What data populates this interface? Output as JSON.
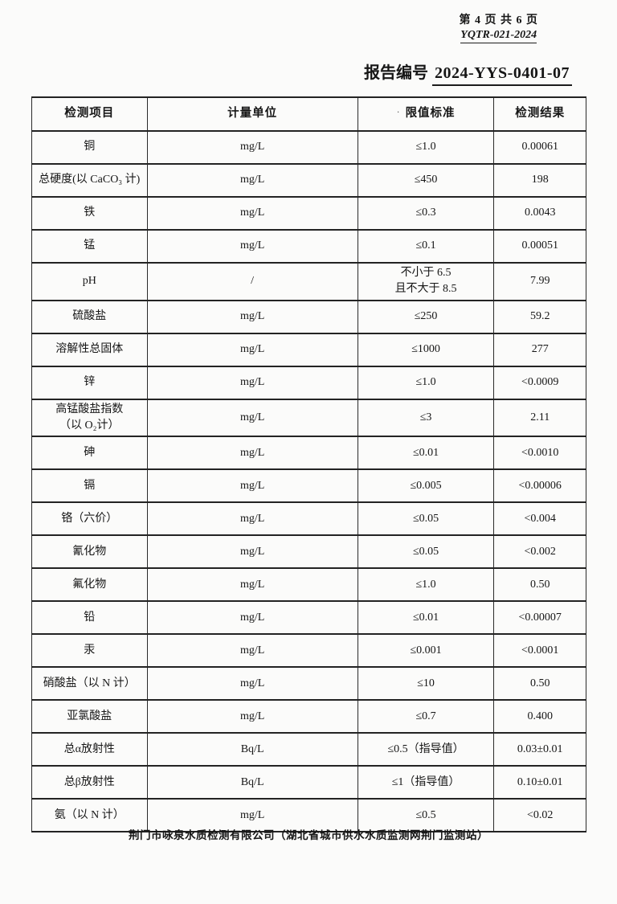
{
  "page_header": {
    "page_info": "第 4 页 共 6 页",
    "doc_code": "YQTR-021-2024",
    "report_label": "报告编号",
    "report_number": "2024-YYS-0401-07"
  },
  "table": {
    "headers": [
      "检测项目",
      "计量单位",
      "限值标准",
      "检测结果"
    ],
    "limit_header_dot": "·",
    "rows": [
      {
        "item": "铜",
        "unit": "mg/L",
        "limit": "≤1.0",
        "result": "0.00061"
      },
      {
        "item": "总硬度(以 CaCO₃ 计)",
        "unit": "mg/L",
        "limit": "≤450",
        "result": "198"
      },
      {
        "item": "铁",
        "unit": "mg/L",
        "limit": "≤0.3",
        "result": "0.0043"
      },
      {
        "item": "锰",
        "unit": "mg/L",
        "limit": "≤0.1",
        "result": "0.00051"
      },
      {
        "item": "pH",
        "unit": "/",
        "limit": "不小于 6.5\n且不大于 8.5",
        "result": "7.99"
      },
      {
        "item": "硫酸盐",
        "unit": "mg/L",
        "limit": "≤250",
        "result": "59.2"
      },
      {
        "item": "溶解性总固体",
        "unit": "mg/L",
        "limit": "≤1000",
        "result": "277"
      },
      {
        "item": "锌",
        "unit": "mg/L",
        "limit": "≤1.0",
        "result": "<0.0009"
      },
      {
        "item": "高锰酸盐指数\n（以 O₂计）",
        "unit": "mg/L",
        "limit": "≤3",
        "result": "2.11"
      },
      {
        "item": "砷",
        "unit": "mg/L",
        "limit": "≤0.01",
        "result": "<0.0010"
      },
      {
        "item": "镉",
        "unit": "mg/L",
        "limit": "≤0.005",
        "result": "<0.00006"
      },
      {
        "item": "铬（六价）",
        "unit": "mg/L",
        "limit": "≤0.05",
        "result": "<0.004"
      },
      {
        "item": "氰化物",
        "unit": "mg/L",
        "limit": "≤0.05",
        "result": "<0.002"
      },
      {
        "item": "氟化物",
        "unit": "mg/L",
        "limit": "≤1.0",
        "result": "0.50"
      },
      {
        "item": "铅",
        "unit": "mg/L",
        "limit": "≤0.01",
        "result": "<0.00007"
      },
      {
        "item": "汞",
        "unit": "mg/L",
        "limit": "≤0.001",
        "result": "<0.0001"
      },
      {
        "item": "硝酸盐（以 N 计）",
        "unit": "mg/L",
        "limit": "≤10",
        "result": "0.50"
      },
      {
        "item": "亚氯酸盐",
        "unit": "mg/L",
        "limit": "≤0.7",
        "result": "0.400"
      },
      {
        "item": "总α放射性",
        "unit": "Bq/L",
        "limit": "≤0.5（指导值）",
        "result": "0.03±0.01"
      },
      {
        "item": "总β放射性",
        "unit": "Bq/L",
        "limit": "≤1（指导值）",
        "result": "0.10±0.01"
      },
      {
        "item": "氨（以 N 计）",
        "unit": "mg/L",
        "limit": "≤0.5",
        "result": "<0.02"
      }
    ]
  },
  "footer": {
    "company_line": "荆门市咏泉水质检测有限公司（湖北省城市供水水质监测网荆门监测站）"
  }
}
